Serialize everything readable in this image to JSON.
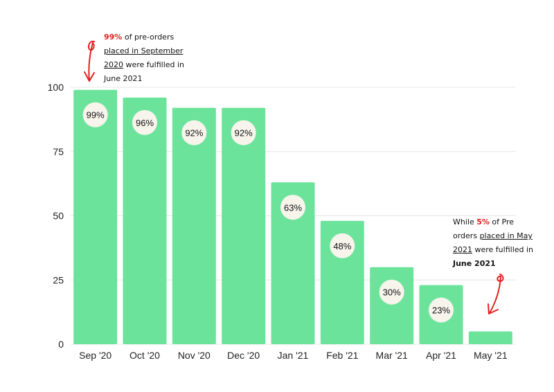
{
  "chart_data": {
    "type": "bar",
    "categories": [
      "Sep '20",
      "Oct '20",
      "Nov '20",
      "Dec '20",
      "Jan '21",
      "Feb '21",
      "Mar '21",
      "Apr '21",
      "May '21"
    ],
    "values": [
      99,
      96,
      92,
      92,
      63,
      48,
      30,
      23,
      5
    ],
    "data_labels": [
      "99%",
      "96%",
      "92%",
      "92%",
      "63%",
      "48%",
      "30%",
      "23%",
      ""
    ],
    "yticks": [
      0,
      25,
      50,
      75,
      100
    ],
    "ylim": [
      0,
      100
    ],
    "grid": true,
    "legend": "none",
    "bar_color": "#6ce39b",
    "label_badge_color": "#f7f4ec",
    "annotation_color": "#e02020",
    "annotations": {
      "first": {
        "highlight": "99%",
        "line1_rest": " of pre-orders",
        "line2": "placed in September",
        "line3_underlined": "2020",
        "line3_rest": " were fulfilled in",
        "line4": "June 2021"
      },
      "last": {
        "line1_pre": "While ",
        "highlight": "5%",
        "line1_rest": " of Pre",
        "line2_pre": "orders ",
        "line2_underlined": "placed in May",
        "line3_underlined": "2021",
        "line3_rest": " were fulfilled in",
        "line4": "June 2021"
      }
    }
  }
}
